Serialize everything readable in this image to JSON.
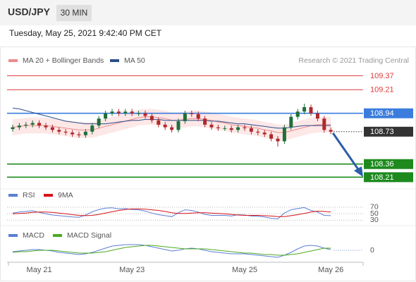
{
  "chart_data": {
    "type": "candlestick",
    "title": "USD/JPY",
    "timeframe": "30 MIN",
    "subtitle": "Tuesday, May 25, 2021 9:42:40 PM CET",
    "source": "Research © 2021 Trading Central",
    "categories": [
      null,
      null,
      null,
      null,
      "May 21",
      null,
      null,
      null,
      null,
      null,
      null,
      null,
      null,
      null,
      null,
      null,
      null,
      null,
      "May 23",
      null,
      null,
      null,
      null,
      null,
      null,
      null,
      null,
      null,
      null,
      null,
      null,
      null,
      null,
      null,
      null,
      "May 25",
      null,
      null,
      null,
      null,
      null,
      null,
      null,
      null,
      null,
      null,
      null,
      null,
      "May 26"
    ],
    "ylim": [
      108.1,
      109.55
    ],
    "ohlc": {
      "up_color": "#1f6f3a",
      "down_color": "#b0282b",
      "open": [
        108.76,
        108.78,
        108.8,
        108.81,
        108.83,
        108.8,
        108.78,
        108.75,
        108.73,
        108.72,
        108.7,
        108.69,
        108.73,
        108.8,
        108.88,
        108.94,
        108.96,
        108.94,
        108.96,
        108.94,
        108.94,
        108.91,
        108.86,
        108.81,
        108.78,
        108.75,
        108.85,
        108.94,
        108.93,
        108.88,
        108.81,
        108.78,
        108.77,
        108.77,
        108.75,
        108.78,
        108.77,
        108.73,
        108.72,
        108.7,
        108.65,
        108.62,
        108.78,
        108.9,
        108.96,
        109.01,
        108.94,
        108.88,
        108.75
      ],
      "high": [
        108.81,
        108.83,
        108.84,
        108.86,
        108.86,
        108.83,
        108.81,
        108.78,
        108.76,
        108.75,
        108.73,
        108.76,
        108.83,
        108.91,
        108.97,
        108.99,
        108.99,
        108.99,
        108.99,
        108.97,
        108.97,
        108.94,
        108.89,
        108.84,
        108.81,
        108.88,
        108.97,
        108.97,
        108.96,
        108.91,
        108.84,
        108.81,
        108.8,
        108.8,
        108.81,
        108.81,
        108.8,
        108.76,
        108.75,
        108.73,
        108.68,
        108.81,
        108.93,
        108.99,
        109.05,
        109.04,
        108.97,
        108.91,
        108.78
      ],
      "low": [
        108.73,
        108.75,
        108.77,
        108.78,
        108.77,
        108.75,
        108.72,
        108.7,
        108.69,
        108.67,
        108.66,
        108.66,
        108.7,
        108.77,
        108.85,
        108.91,
        108.91,
        108.91,
        108.91,
        108.91,
        108.88,
        108.83,
        108.78,
        108.75,
        108.72,
        108.72,
        108.82,
        108.9,
        108.85,
        108.78,
        108.75,
        108.74,
        108.74,
        108.72,
        108.72,
        108.74,
        108.7,
        108.69,
        108.67,
        108.62,
        108.56,
        108.59,
        108.75,
        108.87,
        108.93,
        108.91,
        108.85,
        108.72,
        108.7
      ],
      "close": [
        108.78,
        108.8,
        108.81,
        108.83,
        108.8,
        108.78,
        108.75,
        108.73,
        108.72,
        108.7,
        108.69,
        108.73,
        108.8,
        108.88,
        108.94,
        108.96,
        108.94,
        108.96,
        108.94,
        108.94,
        108.91,
        108.86,
        108.81,
        108.78,
        108.75,
        108.85,
        108.94,
        108.93,
        108.88,
        108.81,
        108.78,
        108.77,
        108.77,
        108.75,
        108.78,
        108.77,
        108.73,
        108.72,
        108.7,
        108.65,
        108.62,
        108.78,
        108.9,
        108.96,
        109.01,
        108.94,
        108.88,
        108.75,
        108.73
      ]
    },
    "overlays": [
      {
        "name": "MA 20 + Bollinger Bands",
        "color": "#f08a8a",
        "band_color": "#fde3e3",
        "values": [
          108.78,
          108.79,
          108.8,
          108.8,
          108.8,
          108.8,
          108.79,
          108.78,
          108.77,
          108.76,
          108.75,
          108.75,
          108.75,
          108.77,
          108.79,
          108.81,
          108.83,
          108.85,
          108.87,
          108.89,
          108.9,
          108.9,
          108.89,
          108.88,
          108.86,
          108.86,
          108.87,
          108.88,
          108.88,
          108.87,
          108.86,
          108.84,
          108.83,
          108.81,
          108.8,
          108.79,
          108.78,
          108.77,
          108.75,
          108.74,
          108.72,
          108.72,
          108.74,
          108.76,
          108.78,
          108.8,
          108.81,
          108.81,
          108.81
        ],
        "upper": [
          108.87,
          108.88,
          108.89,
          108.89,
          108.89,
          108.89,
          108.88,
          108.87,
          108.86,
          108.85,
          108.84,
          108.84,
          108.84,
          108.86,
          108.88,
          108.9,
          108.92,
          108.94,
          108.96,
          108.98,
          108.99,
          108.99,
          108.98,
          108.97,
          108.95,
          108.95,
          108.96,
          108.97,
          108.97,
          108.96,
          108.95,
          108.93,
          108.92,
          108.9,
          108.89,
          108.88,
          108.87,
          108.86,
          108.84,
          108.83,
          108.81,
          108.81,
          108.83,
          108.85,
          108.87,
          108.89,
          108.9,
          108.9,
          108.9
        ],
        "lower": [
          108.69,
          108.7,
          108.71,
          108.71,
          108.71,
          108.71,
          108.7,
          108.69,
          108.68,
          108.67,
          108.66,
          108.66,
          108.66,
          108.68,
          108.7,
          108.72,
          108.74,
          108.76,
          108.78,
          108.8,
          108.81,
          108.81,
          108.8,
          108.79,
          108.77,
          108.77,
          108.78,
          108.79,
          108.79,
          108.78,
          108.77,
          108.75,
          108.74,
          108.72,
          108.71,
          108.7,
          108.69,
          108.68,
          108.66,
          108.65,
          108.63,
          108.63,
          108.65,
          108.67,
          108.69,
          108.71,
          108.72,
          108.72,
          108.72
        ]
      },
      {
        "name": "MA 50",
        "color": "#2a4f8a",
        "values": [
          109.0,
          108.99,
          108.97,
          108.95,
          108.93,
          108.91,
          108.89,
          108.87,
          108.85,
          108.84,
          108.83,
          108.82,
          108.82,
          108.82,
          108.82,
          108.83,
          108.84,
          108.85,
          108.86,
          108.86,
          108.87,
          108.87,
          108.87,
          108.86,
          108.86,
          108.86,
          108.86,
          108.86,
          108.86,
          108.86,
          108.85,
          108.85,
          108.84,
          108.83,
          108.82,
          108.82,
          108.81,
          108.8,
          108.79,
          108.78,
          108.77,
          108.77,
          108.78,
          108.79,
          108.8,
          108.8,
          108.8,
          108.8,
          108.8
        ]
      }
    ],
    "levels": [
      {
        "value": 109.37,
        "color": "#e03a3a",
        "label_style": "plain",
        "line_style": "solid"
      },
      {
        "value": 109.21,
        "color": "#e03a3a",
        "label_style": "plain",
        "line_style": "solid"
      },
      {
        "value": 108.94,
        "color": "#3b7ddd",
        "label_style": "boxed",
        "line_style": "solid"
      },
      {
        "value": 108.73,
        "color": "#333333",
        "label_style": "boxed",
        "line_style": "dotted"
      },
      {
        "value": 108.36,
        "color": "#1e8a1e",
        "label_style": "boxed",
        "line_style": "solid"
      },
      {
        "value": 108.21,
        "color": "#1e8a1e",
        "label_style": "boxed",
        "line_style": "solid"
      }
    ],
    "panels": [
      {
        "ylim": [
          20,
          85
        ],
        "yticks": [
          70,
          50,
          30
        ],
        "series": [
          {
            "name": "RSI",
            "color": "#5a7fd6",
            "values": [
              52,
              55,
              57,
              59,
              54,
              50,
              46,
              44,
              42,
              40,
              39,
              46,
              56,
              63,
              67,
              68,
              65,
              66,
              63,
              62,
              58,
              52,
              47,
              44,
              41,
              53,
              62,
              60,
              55,
              48,
              45,
              45,
              45,
              43,
              47,
              46,
              43,
              42,
              40,
              36,
              34,
              52,
              62,
              66,
              69,
              60,
              55,
              45,
              44
            ]
          },
          {
            "name": "9MA",
            "color": "#d9131a",
            "values": [
              50,
              51,
              52,
              54,
              55,
              55,
              54,
              52,
              50,
              47,
              45,
              44,
              45,
              48,
              52,
              56,
              60,
              63,
              65,
              65,
              64,
              62,
              60,
              57,
              53,
              51,
              51,
              52,
              53,
              53,
              52,
              51,
              50,
              48,
              46,
              45,
              45,
              45,
              44,
              43,
              41,
              41,
              44,
              47,
              51,
              55,
              58,
              57,
              55
            ]
          }
        ]
      },
      {
        "ylim": [
          -0.17,
          0.25
        ],
        "yticks": [
          0
        ],
        "series": [
          {
            "name": "MACD",
            "color": "#5a7fd6",
            "values": [
              -0.02,
              -0.01,
              0,
              0.01,
              0.01,
              0,
              -0.01,
              -0.03,
              -0.04,
              -0.05,
              -0.06,
              -0.05,
              -0.03,
              0,
              0.03,
              0.06,
              0.07,
              0.08,
              0.08,
              0.08,
              0.07,
              0.05,
              0.03,
              0.01,
              -0.01,
              0,
              0.02,
              0.03,
              0.02,
              0,
              -0.02,
              -0.03,
              -0.04,
              -0.05,
              -0.05,
              -0.05,
              -0.06,
              -0.07,
              -0.08,
              -0.09,
              -0.1,
              -0.07,
              -0.03,
              0.02,
              0.06,
              0.07,
              0.06,
              0.03,
              0.01
            ]
          },
          {
            "name": "MACD Signal",
            "color": "#4caa1f",
            "values": [
              -0.03,
              -0.02,
              -0.02,
              -0.01,
              0,
              0,
              0,
              -0.01,
              -0.02,
              -0.03,
              -0.04,
              -0.04,
              -0.04,
              -0.03,
              -0.02,
              0,
              0.02,
              0.04,
              0.05,
              0.06,
              0.07,
              0.07,
              0.06,
              0.05,
              0.04,
              0.03,
              0.02,
              0.02,
              0.02,
              0.02,
              0.01,
              0,
              -0.01,
              -0.02,
              -0.03,
              -0.04,
              -0.04,
              -0.05,
              -0.06,
              -0.06,
              -0.07,
              -0.07,
              -0.06,
              -0.05,
              -0.03,
              -0.01,
              0.01,
              0.03,
              0.03
            ]
          }
        ]
      }
    ]
  }
}
